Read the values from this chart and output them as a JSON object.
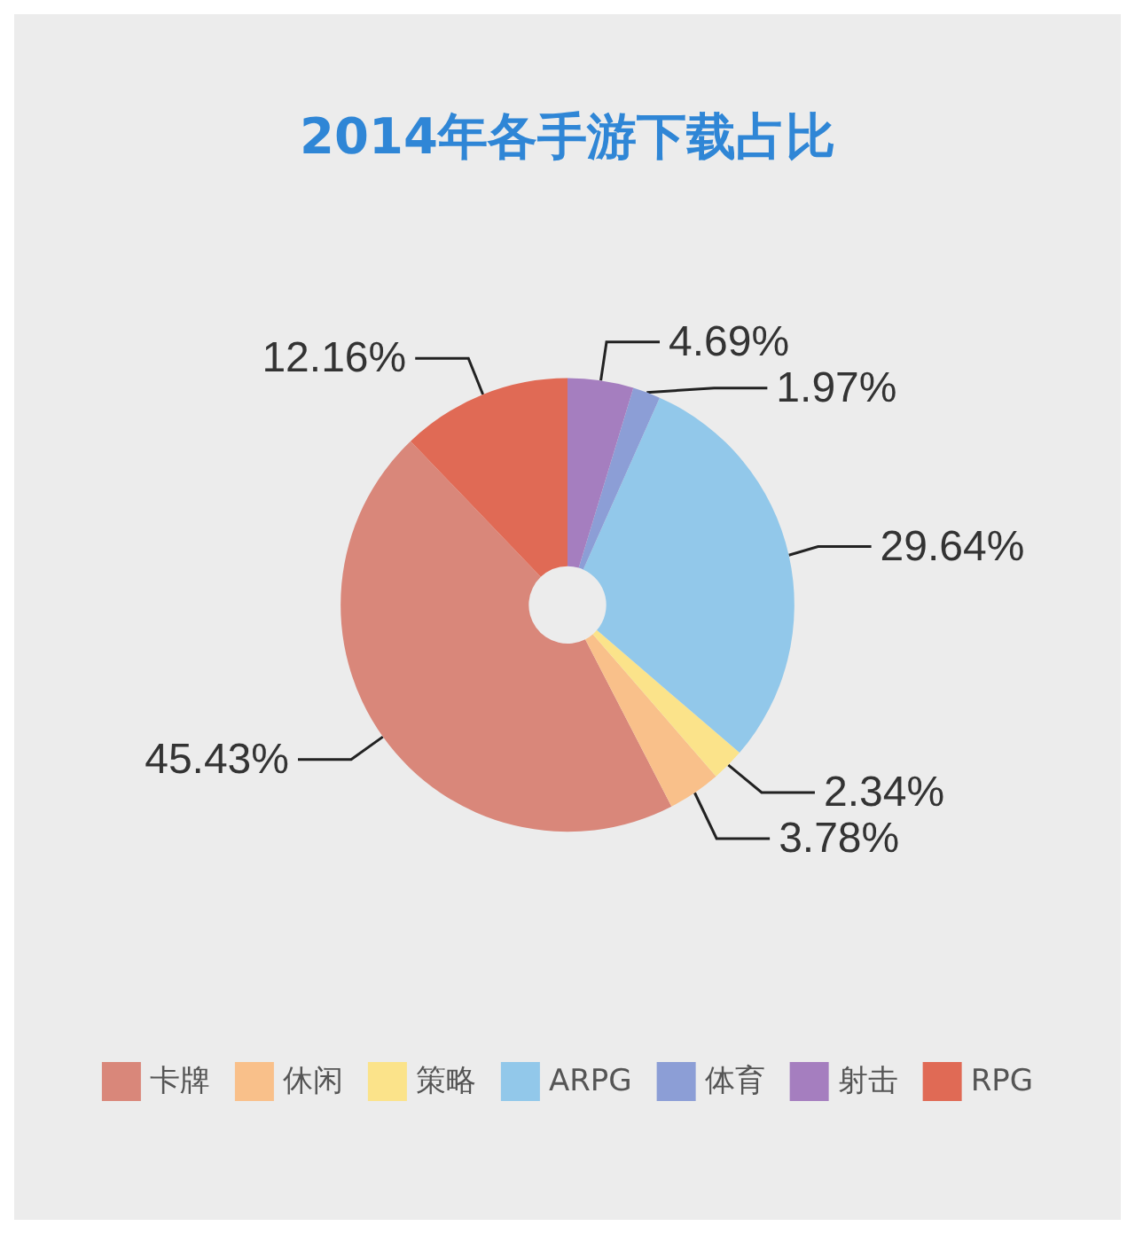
{
  "chart_data": {
    "type": "donut",
    "title": "2014年各手游下载占比",
    "categories": [
      "卡牌",
      "休闲",
      "策略",
      "ARPG",
      "体育",
      "射击",
      "RPG"
    ],
    "values": [
      45.43,
      3.78,
      2.34,
      29.64,
      1.97,
      4.69,
      12.16
    ],
    "value_labels": [
      "45.43%",
      "3.78%",
      "2.34%",
      "29.64%",
      "1.97%",
      "4.69%",
      "12.16%"
    ],
    "colors": [
      "#d9877a",
      "#f9c08a",
      "#fbe38a",
      "#92c8ea",
      "#8c9ed6",
      "#a57ebf",
      "#e06a55"
    ],
    "legend": "bottom"
  }
}
